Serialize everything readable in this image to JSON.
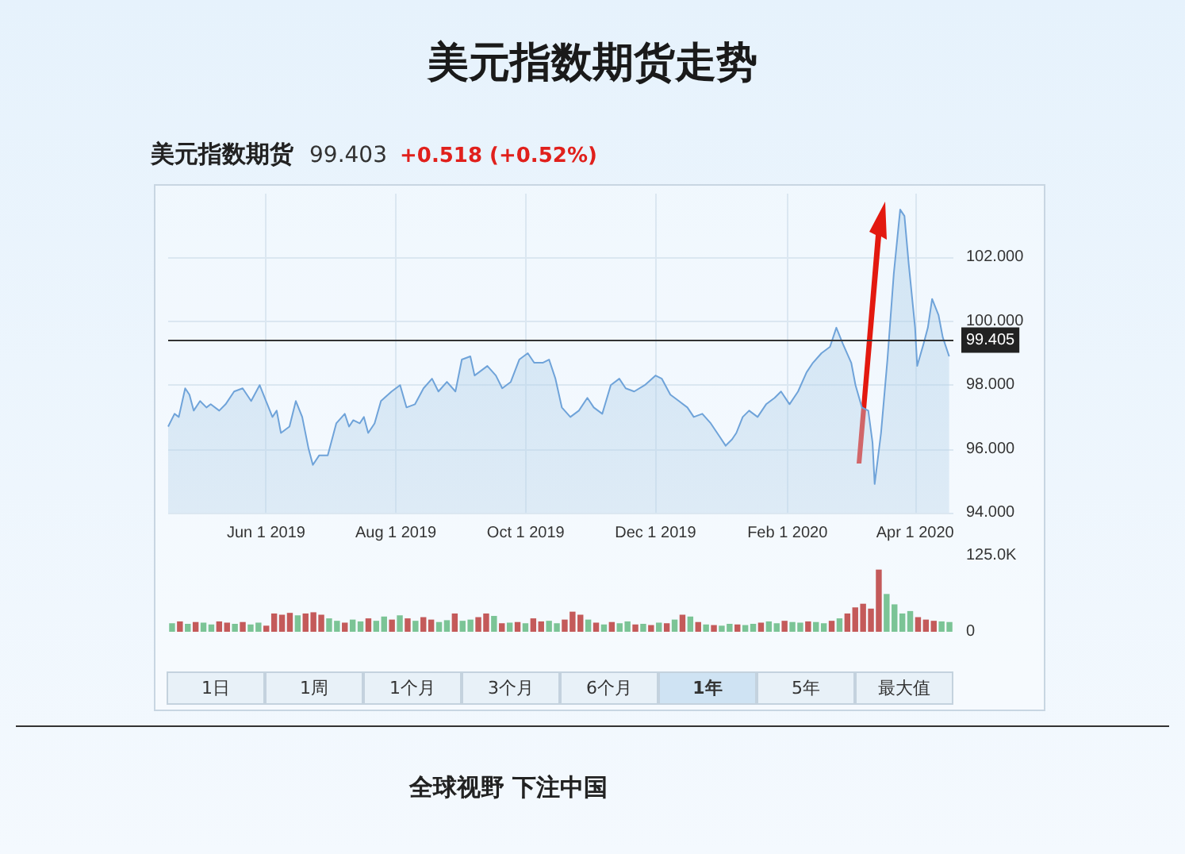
{
  "chart_data": [
    {
      "type": "area",
      "title": "美元指数期货走势",
      "subtitle": "美元指数期货",
      "annotations": [
        "99.403",
        "+0.518 (+0.52%)",
        "1日",
        "1周",
        "1个月",
        "3个月",
        "6个月",
        "1年",
        "5年",
        "最大值",
        "全球视野 下注中国"
      ],
      "x": [
        "2019-04-16",
        "2019-04-19",
        "2019-04-21",
        "2019-04-24",
        "2019-04-26",
        "2019-04-28",
        "2019-05-01",
        "2019-05-04",
        "2019-05-06",
        "2019-05-10",
        "2019-05-13",
        "2019-05-17",
        "2019-05-21",
        "2019-05-25",
        "2019-05-29",
        "2019-06-01",
        "2019-06-04",
        "2019-06-06",
        "2019-06-08",
        "2019-06-12",
        "2019-06-15",
        "2019-06-18",
        "2019-06-21",
        "2019-06-23",
        "2019-06-26",
        "2019-06-30",
        "2019-07-04",
        "2019-07-08",
        "2019-07-10",
        "2019-07-12",
        "2019-07-15",
        "2019-07-17",
        "2019-07-19",
        "2019-07-22",
        "2019-07-25",
        "2019-07-30",
        "2019-08-03",
        "2019-08-06",
        "2019-08-10",
        "2019-08-14",
        "2019-08-18",
        "2019-08-21",
        "2019-08-25",
        "2019-08-29",
        "2019-09-01",
        "2019-09-05",
        "2019-09-07",
        "2019-09-11",
        "2019-09-13",
        "2019-09-17",
        "2019-09-20",
        "2019-09-24",
        "2019-09-28",
        "2019-10-02",
        "2019-10-05",
        "2019-10-09",
        "2019-10-12",
        "2019-10-15",
        "2019-10-18",
        "2019-10-22",
        "2019-10-26",
        "2019-10-30",
        "2019-11-02",
        "2019-11-06",
        "2019-11-10",
        "2019-11-14",
        "2019-11-17",
        "2019-11-21",
        "2019-11-26",
        "2019-12-01",
        "2019-12-04",
        "2019-12-08",
        "2019-12-12",
        "2019-12-16",
        "2019-12-19",
        "2019-12-23",
        "2019-12-27",
        "2019-12-31",
        "2020-01-03",
        "2020-01-06",
        "2020-01-08",
        "2020-01-11",
        "2020-01-14",
        "2020-01-18",
        "2020-01-22",
        "2020-01-26",
        "2020-01-29",
        "2020-02-02",
        "2020-02-06",
        "2020-02-10",
        "2020-02-13",
        "2020-02-17",
        "2020-02-21",
        "2020-02-24",
        "2020-02-27",
        "2020-03-02",
        "2020-03-04",
        "2020-03-07",
        "2020-03-10",
        "2020-03-12",
        "2020-03-13",
        "2020-03-16",
        "2020-03-19",
        "2020-03-22",
        "2020-03-25",
        "2020-03-27",
        "2020-03-29",
        "2020-04-01",
        "2020-04-02",
        "2020-04-05",
        "2020-04-07",
        "2020-04-09",
        "2020-04-12",
        "2020-04-14",
        "2020-04-17"
      ],
      "values": [
        96.7,
        97.1,
        97.0,
        97.9,
        97.7,
        97.2,
        97.5,
        97.3,
        97.4,
        97.2,
        97.4,
        97.8,
        97.9,
        97.5,
        98.0,
        97.5,
        97.0,
        97.2,
        96.5,
        96.7,
        97.5,
        97.0,
        96.0,
        95.5,
        95.8,
        95.8,
        96.8,
        97.1,
        96.7,
        96.9,
        96.8,
        97.0,
        96.5,
        96.8,
        97.5,
        97.8,
        98.0,
        97.3,
        97.4,
        97.9,
        98.2,
        97.8,
        98.1,
        97.8,
        98.8,
        98.9,
        98.3,
        98.5,
        98.6,
        98.3,
        97.9,
        98.1,
        98.8,
        99.0,
        98.7,
        98.7,
        98.8,
        98.2,
        97.3,
        97.0,
        97.2,
        97.6,
        97.3,
        97.1,
        98.0,
        98.2,
        97.9,
        97.8,
        98.0,
        98.3,
        98.2,
        97.7,
        97.5,
        97.3,
        97.0,
        97.1,
        96.8,
        96.4,
        96.1,
        96.3,
        96.5,
        97.0,
        97.2,
        97.0,
        97.4,
        97.6,
        97.8,
        97.4,
        97.8,
        98.4,
        98.7,
        99.0,
        99.2,
        99.8,
        99.3,
        98.7,
        98.0,
        97.3,
        97.2,
        96.2,
        94.9,
        96.5,
        98.8,
        101.5,
        103.5,
        103.3,
        101.8,
        99.8,
        98.6,
        99.3,
        99.8,
        100.7,
        100.2,
        99.5,
        98.9
      ],
      "color": "#6fa3d9",
      "xlim": [
        "2019-04-16",
        "2020-04-19"
      ],
      "xticks": [
        {
          "value": "2019-06-01",
          "label": "Jun 1 2019"
        },
        {
          "value": "2019-08-01",
          "label": "Aug 1 2019"
        },
        {
          "value": "2019-10-01",
          "label": "Oct 1 2019"
        },
        {
          "value": "2019-12-01",
          "label": "Dec 1 2019"
        },
        {
          "value": "2020-02-01",
          "label": "Feb 1 2020"
        },
        {
          "value": "2020-04-01",
          "label": "Apr 1 2020"
        }
      ],
      "ylim": [
        94,
        104
      ],
      "yticks": [
        {
          "value": 94,
          "label": "94.000"
        },
        {
          "value": 96,
          "label": "96.000"
        },
        {
          "value": 98,
          "label": "98.000"
        },
        {
          "value": 100,
          "label": "100.000"
        },
        {
          "value": 102,
          "label": "102.000"
        }
      ],
      "ref_lines": [
        {
          "axis": "y",
          "value": 99.405,
          "label": "99.405",
          "color": "#333333"
        }
      ],
      "grid": true
    },
    {
      "type": "bar",
      "categories": [
        null,
        null,
        null,
        null,
        null,
        null,
        null,
        null,
        null,
        null,
        null,
        null,
        null,
        null,
        null,
        null,
        null,
        null,
        null,
        null,
        null,
        null,
        null,
        null,
        null,
        null,
        null,
        null,
        null,
        null,
        null,
        null,
        null,
        null,
        null,
        null,
        null,
        null,
        null,
        null,
        null,
        null,
        null,
        null,
        null,
        null,
        null,
        null,
        null,
        null,
        null,
        null,
        null,
        null,
        null,
        null,
        null,
        null,
        null,
        null,
        null,
        null,
        null,
        null,
        null,
        null,
        null,
        null,
        null,
        null,
        null,
        null,
        null,
        null,
        null,
        null,
        null,
        null,
        null,
        null,
        null,
        null,
        null,
        null,
        null,
        null,
        null,
        null,
        null,
        null,
        null,
        null,
        null,
        null,
        null,
        null,
        null,
        null,
        null,
        null
      ],
      "values": [
        14000,
        17000,
        13000,
        16000,
        15000,
        12000,
        17000,
        15000,
        13000,
        16000,
        12000,
        15000,
        10000,
        30000,
        28000,
        31000,
        27000,
        30000,
        32000,
        28000,
        22000,
        18000,
        15000,
        20000,
        17000,
        22000,
        18000,
        25000,
        20000,
        27000,
        22000,
        18000,
        24000,
        20000,
        16000,
        19000,
        30000,
        18000,
        20000,
        24000,
        30000,
        26000,
        14000,
        15000,
        16000,
        14000,
        22000,
        17000,
        18000,
        14000,
        20000,
        33000,
        28000,
        20000,
        15000,
        12000,
        16000,
        14000,
        17000,
        12000,
        13000,
        11000,
        15000,
        14000,
        20000,
        28000,
        25000,
        16000,
        12000,
        11000,
        10000,
        13000,
        12000,
        11000,
        13000,
        15000,
        17000,
        14000,
        18000,
        16000,
        15000,
        17000,
        16000,
        14000,
        18000,
        22000,
        30000,
        40000,
        46000,
        38000,
        102000,
        62000,
        45000,
        30000,
        34000,
        24000,
        20000,
        18000,
        17000,
        16000
      ],
      "colors": [
        "#7bc496",
        "#c45a5a",
        "#7bc496",
        "#c45a5a",
        "#7bc496",
        "#7bc496",
        "#c45a5a",
        "#c45a5a",
        "#7bc496",
        "#c45a5a",
        "#7bc496",
        "#7bc496",
        "#c45a5a",
        "#c45a5a",
        "#c45a5a",
        "#c45a5a",
        "#7bc496",
        "#c45a5a",
        "#c45a5a",
        "#c45a5a",
        "#7bc496",
        "#7bc496",
        "#c45a5a",
        "#7bc496",
        "#7bc496",
        "#c45a5a",
        "#7bc496",
        "#7bc496",
        "#c45a5a",
        "#7bc496",
        "#c45a5a",
        "#7bc496",
        "#c45a5a",
        "#c45a5a",
        "#7bc496",
        "#7bc496",
        "#c45a5a",
        "#7bc496",
        "#7bc496",
        "#c45a5a",
        "#c45a5a",
        "#7bc496",
        "#c45a5a",
        "#7bc496",
        "#c45a5a",
        "#7bc496",
        "#c45a5a",
        "#c45a5a",
        "#7bc496",
        "#7bc496",
        "#c45a5a",
        "#c45a5a",
        "#c45a5a",
        "#7bc496",
        "#c45a5a",
        "#7bc496",
        "#c45a5a",
        "#7bc496",
        "#7bc496",
        "#c45a5a",
        "#7bc496",
        "#c45a5a",
        "#7bc496",
        "#c45a5a",
        "#7bc496",
        "#c45a5a",
        "#7bc496",
        "#c45a5a",
        "#7bc496",
        "#c45a5a",
        "#7bc496",
        "#7bc496",
        "#c45a5a",
        "#7bc496",
        "#7bc496",
        "#c45a5a",
        "#7bc496",
        "#7bc496",
        "#c45a5a",
        "#7bc496",
        "#7bc496",
        "#c45a5a",
        "#7bc496",
        "#7bc496",
        "#c45a5a",
        "#7bc496",
        "#c45a5a",
        "#c45a5a",
        "#c45a5a",
        "#c45a5a",
        "#c45a5a",
        "#7bc496",
        "#7bc496",
        "#7bc496",
        "#7bc496",
        "#c45a5a",
        "#c45a5a",
        "#c45a5a",
        "#7bc496",
        "#7bc496"
      ],
      "ylim": [
        0,
        125000
      ],
      "yticks": [
        0,
        {
          "value": 125000,
          "label": "125.0K"
        }
      ],
      "tick_labels": "y"
    }
  ]
}
